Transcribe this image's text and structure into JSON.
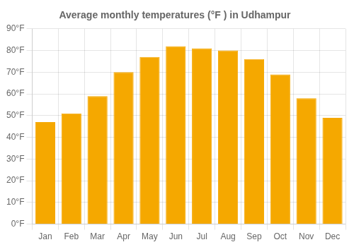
{
  "chart_data": {
    "type": "bar",
    "title": "Average monthly temperatures (°F ) in Udhampur",
    "categories": [
      "Jan",
      "Feb",
      "Mar",
      "Apr",
      "May",
      "Jun",
      "Jul",
      "Aug",
      "Sep",
      "Oct",
      "Nov",
      "Dec"
    ],
    "values": [
      47,
      51,
      59,
      70,
      77,
      82,
      81,
      80,
      76,
      69,
      58,
      49
    ],
    "color": "#F5A800",
    "ylim": [
      0,
      90
    ],
    "yticks": [
      {
        "value": 0,
        "label": "0°F"
      },
      {
        "value": 10,
        "label": "10°F"
      },
      {
        "value": 20,
        "label": "20°F"
      },
      {
        "value": 30,
        "label": "30°F"
      },
      {
        "value": 40,
        "label": "40°F"
      },
      {
        "value": 50,
        "label": "50°F"
      },
      {
        "value": 60,
        "label": "60°F"
      },
      {
        "value": 70,
        "label": "70°F"
      },
      {
        "value": 80,
        "label": "80°F"
      },
      {
        "value": 90,
        "label": "90°F"
      }
    ],
    "grid": true
  }
}
